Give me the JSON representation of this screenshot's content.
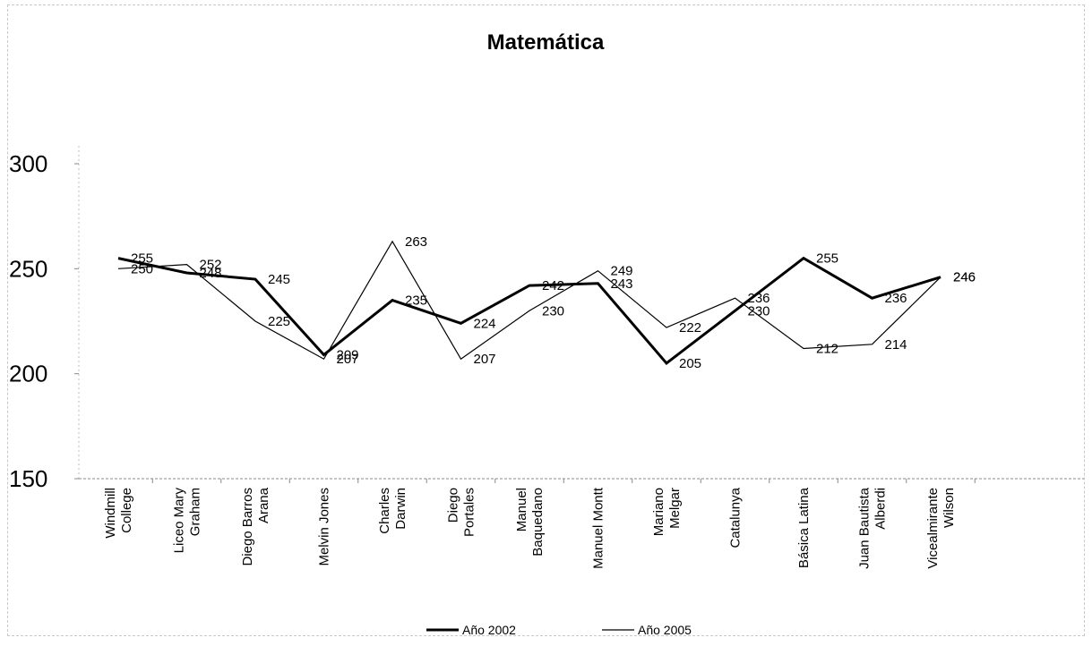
{
  "chart_data": {
    "type": "line",
    "title": "Matemática",
    "xlabel": "",
    "ylabel": "",
    "ylim": [
      150,
      300
    ],
    "yticks": [
      150,
      200,
      250,
      300
    ],
    "grid": false,
    "legend_position": "bottom-center",
    "categories": [
      [
        "Windmill",
        "College"
      ],
      [
        "Liceo Mary",
        "Graham"
      ],
      [
        "Diego Barros",
        "Arana"
      ],
      [
        "Melvin Jones"
      ],
      [
        "Charles",
        "Darwin"
      ],
      [
        "Diego",
        "Portales"
      ],
      [
        "Manuel",
        "Baquedano"
      ],
      [
        "Manuel Montt"
      ],
      [
        "Mariano",
        "Melgar"
      ],
      [
        "Catalunya"
      ],
      [
        "Básica Latina"
      ],
      [
        "Juan Bautista",
        "Alberdi"
      ],
      [
        "Vicealmirante",
        "Wilson"
      ]
    ],
    "series": [
      {
        "name": "Año 2002",
        "color": "#000000",
        "values": [
          255,
          248,
          245,
          209,
          235,
          224,
          242,
          243,
          205,
          230,
          255,
          236,
          246
        ]
      },
      {
        "name": "Año 2005",
        "color": "#000000",
        "values": [
          250,
          252,
          225,
          207,
          263,
          207,
          230,
          249,
          222,
          236,
          212,
          214,
          246
        ]
      }
    ]
  }
}
